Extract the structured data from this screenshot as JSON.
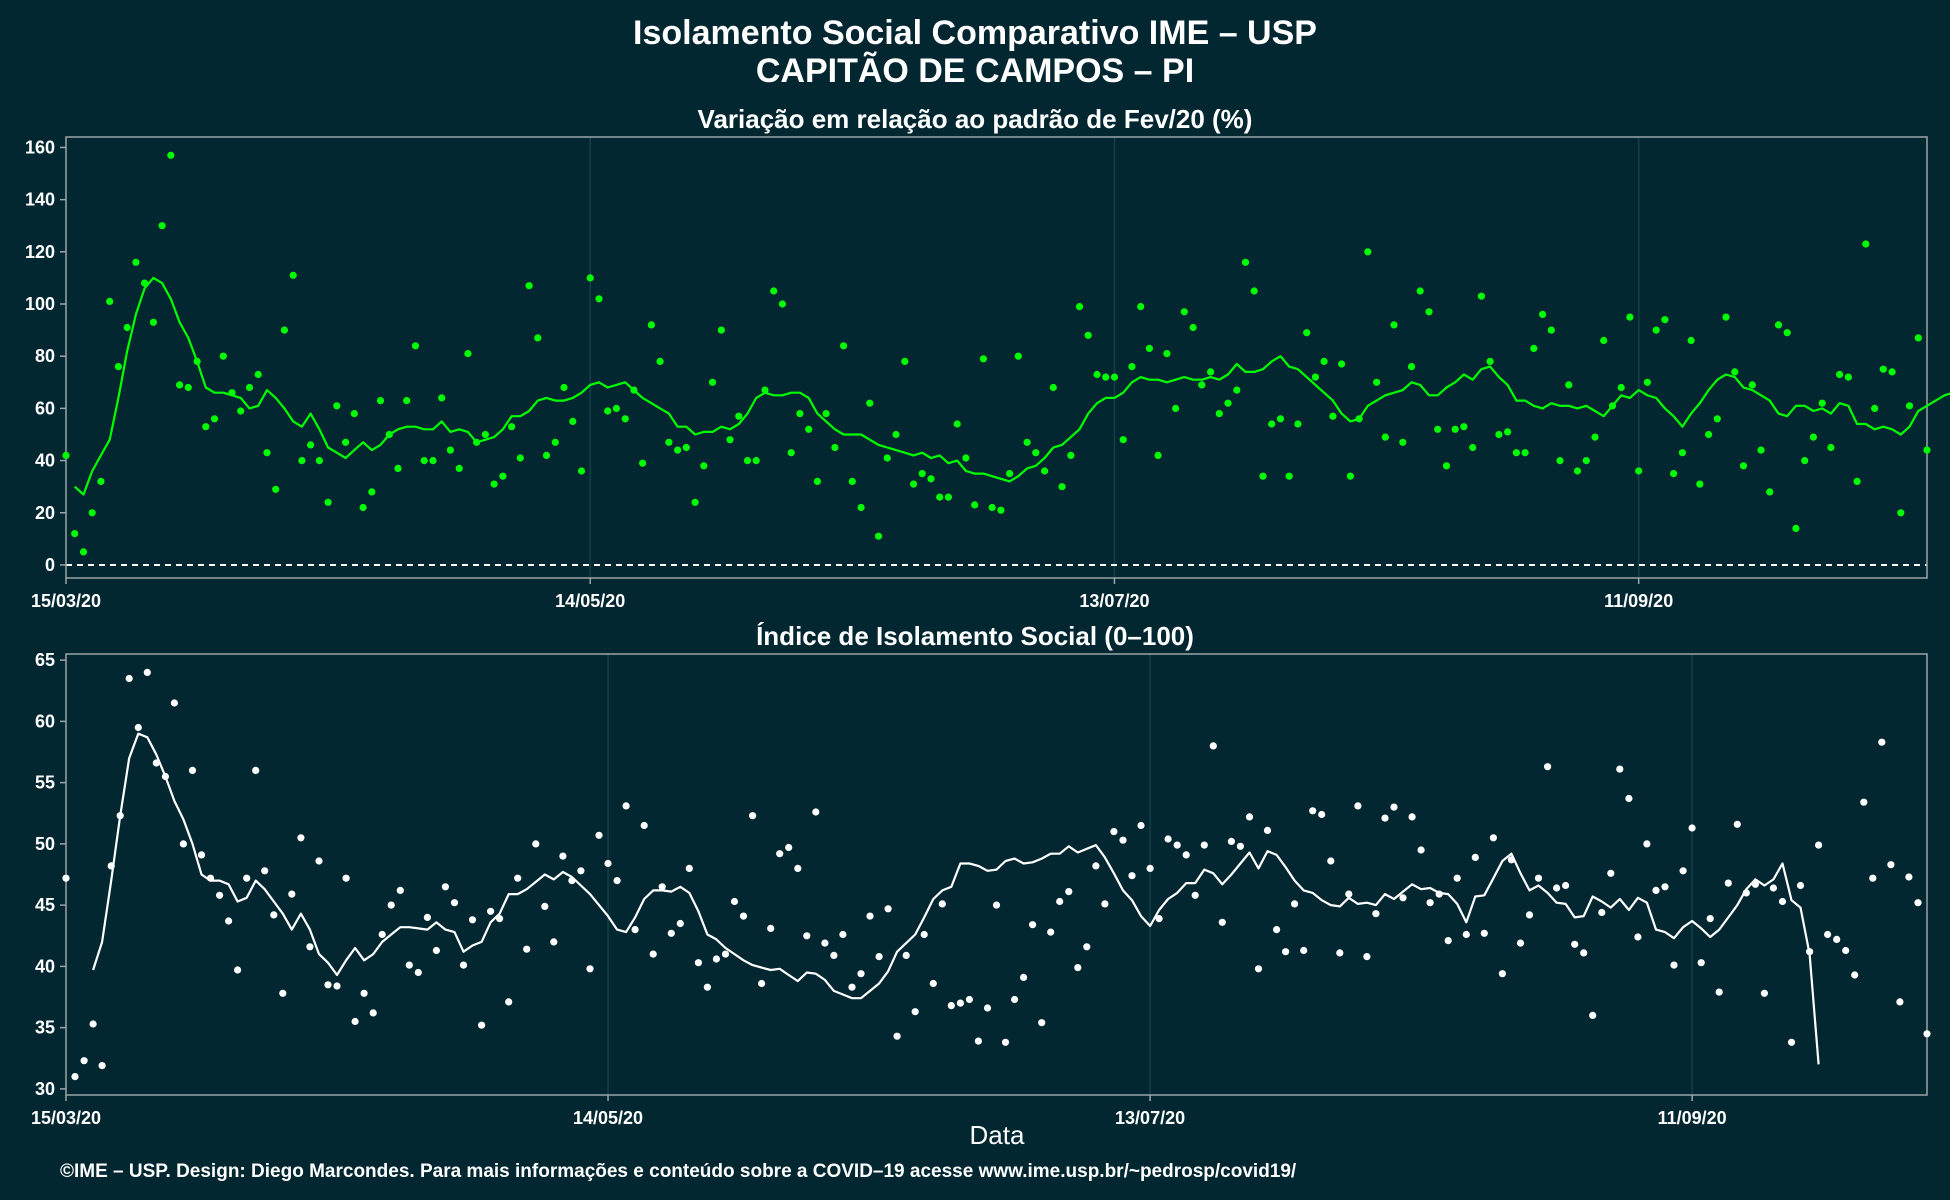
{
  "title": "Isolamento Social Comparativo IME – USP",
  "subtitle": "CAPITÃO DE CAMPOS – PI",
  "footer": "©IME – USP. Design: Diego Marcondes. Para mais informações e conteúdo sobre a COVID–19 acesse www.ime.usp.br/~pedrosp/covid19/",
  "colors": {
    "background": "#022731",
    "top_series": "#00ff00",
    "bottom_series": "#ffffff",
    "frame": "#9aa5a8",
    "grid": "#12404a"
  },
  "chart_data": [
    {
      "type": "scatter",
      "title": "Variação em relação ao padrão de Fev/20 (%)",
      "x_ticks": [
        "15/03/20",
        "14/05/20",
        "13/07/20",
        "11/09/20"
      ],
      "x_range": [
        "15/03/20",
        "13/10/20"
      ],
      "y_ticks": [
        0,
        20,
        40,
        60,
        80,
        100,
        120,
        140,
        160
      ],
      "ylim": [
        -5,
        164
      ],
      "reference_line": 0,
      "grid": true,
      "points": [
        42,
        12,
        5,
        20,
        32,
        101,
        76,
        91,
        116,
        108,
        93,
        130,
        157,
        69,
        68,
        78,
        53,
        56,
        80,
        66,
        59,
        68,
        73,
        43,
        29,
        90,
        111,
        40,
        46,
        40,
        24,
        61,
        47,
        58,
        22,
        28,
        63,
        50,
        37,
        63,
        84,
        40,
        40,
        64,
        44,
        37,
        81,
        47,
        50,
        31,
        34,
        53,
        41,
        107,
        87,
        42,
        47,
        68,
        55,
        36,
        110,
        102,
        59,
        60,
        56,
        67,
        39,
        92,
        78,
        47,
        44,
        45,
        24,
        38,
        70,
        90,
        48,
        57,
        40,
        40,
        67,
        105,
        100,
        43,
        58,
        52,
        32,
        58,
        45,
        84,
        32,
        22,
        62,
        11,
        41,
        50,
        78,
        31,
        35,
        33,
        26,
        26,
        54,
        41,
        23,
        79,
        22,
        21,
        35,
        80,
        47,
        43,
        36,
        68,
        30,
        42,
        99,
        88,
        73,
        72,
        72,
        48,
        76,
        99,
        83,
        42,
        81,
        60,
        97,
        91,
        69,
        74,
        58,
        62,
        67,
        116,
        105,
        34,
        54,
        56,
        34,
        54,
        89,
        72,
        78,
        57,
        77,
        34,
        56,
        120,
        70,
        49,
        92,
        47,
        76,
        105,
        97,
        52,
        38,
        52,
        53,
        45,
        103,
        78,
        50,
        51,
        43,
        43,
        83,
        96,
        90,
        40,
        69,
        36,
        40,
        49,
        86,
        61,
        68,
        95,
        36,
        70,
        90,
        94,
        35,
        43,
        86,
        31,
        50,
        56,
        95,
        74,
        38,
        69,
        44,
        28,
        92,
        89,
        14,
        40,
        49,
        62,
        45,
        73,
        72,
        32,
        123,
        60,
        75,
        74,
        20,
        61,
        87,
        44
      ],
      "rolling_avg": [
        30,
        27,
        36,
        42,
        48,
        64,
        82,
        96,
        106,
        110,
        108,
        102,
        93,
        87,
        78,
        68,
        66,
        66,
        65,
        64,
        60,
        61,
        67,
        64,
        60,
        55,
        53,
        58,
        52,
        45,
        43,
        41,
        44,
        47,
        44,
        46,
        50,
        52,
        53,
        53,
        52,
        52,
        55,
        51,
        52,
        51,
        47,
        48,
        49,
        52,
        57,
        57,
        59,
        63,
        64,
        63,
        63,
        64,
        66,
        69,
        70,
        68,
        69,
        70,
        67,
        64,
        62,
        60,
        58,
        53,
        53,
        50,
        51,
        51,
        53,
        52,
        54,
        58,
        64,
        66,
        65,
        65,
        66,
        66,
        64,
        58,
        55,
        52,
        50,
        50,
        50,
        48,
        46,
        45,
        44,
        43,
        42,
        43,
        41,
        42,
        39,
        40,
        36,
        35,
        35,
        34,
        33,
        32,
        34,
        37,
        38,
        41,
        45,
        46,
        49,
        52,
        58,
        62,
        64,
        64,
        66,
        70,
        72,
        71,
        71,
        70,
        71,
        72,
        71,
        71,
        72,
        71,
        73,
        77,
        74,
        74,
        75,
        78,
        80,
        76,
        75,
        72,
        69,
        66,
        63,
        58,
        55,
        56,
        61,
        63,
        65,
        66,
        67,
        70,
        69,
        65,
        65,
        68,
        70,
        73,
        71,
        75,
        76,
        72,
        69,
        63,
        63,
        61,
        60,
        62,
        61,
        61,
        60,
        61,
        59,
        57,
        61,
        65,
        64,
        67,
        65,
        64,
        60,
        57,
        53,
        58,
        62,
        67,
        71,
        73,
        72,
        68,
        67,
        65,
        63,
        58,
        57,
        61,
        61,
        59,
        60,
        58,
        62,
        61,
        54,
        54,
        52,
        53,
        52,
        50,
        53,
        59,
        61,
        63,
        65,
        66,
        70,
        72,
        66,
        62,
        71,
        60
      ],
      "rolling_start": 1
    },
    {
      "type": "scatter",
      "title": "Índice de Isolamento Social (0–100)",
      "xlabel": "Data",
      "x_ticks": [
        "15/03/20",
        "14/05/20",
        "13/07/20",
        "11/09/20"
      ],
      "x_range": [
        "15/03/20",
        "13/10/20"
      ],
      "y_ticks": [
        30,
        35,
        40,
        45,
        50,
        55,
        60,
        65
      ],
      "ylim": [
        29.5,
        65.5
      ],
      "grid": true,
      "points": [
        47.2,
        31,
        32.3,
        35.3,
        31.9,
        48.2,
        52.3,
        63.5,
        59.5,
        64,
        56.6,
        55.5,
        61.5,
        50,
        56,
        49.1,
        47.2,
        45.8,
        43.7,
        39.7,
        47.2,
        56,
        47.8,
        44.2,
        37.8,
        45.9,
        50.5,
        41.6,
        48.6,
        38.5,
        38.4,
        47.2,
        35.5,
        37.8,
        36.2,
        42.6,
        45,
        46.2,
        40.1,
        39.5,
        44,
        41.3,
        46.5,
        45.2,
        40.1,
        43.8,
        35.2,
        44.5,
        43.9,
        37.1,
        47.2,
        41.4,
        50,
        44.9,
        42,
        49,
        47,
        47.8,
        39.8,
        50.7,
        48.4,
        47,
        53.1,
        43,
        51.5,
        41,
        46.5,
        42.7,
        43.5,
        48,
        40.3,
        38.3,
        40.6,
        41,
        45.3,
        44.1,
        52.3,
        38.6,
        43.1,
        49.2,
        49.7,
        48,
        42.5,
        52.6,
        41.9,
        40.9,
        42.6,
        38.3,
        39.4,
        44.1,
        40.8,
        44.7,
        34.3,
        40.9,
        36.3,
        42.6,
        38.6,
        45.1,
        36.8,
        37,
        37.3,
        33.9,
        36.6,
        45,
        33.8,
        37.3,
        39.1,
        43.4,
        35.4,
        42.8,
        45.3,
        46.1,
        39.9,
        41.6,
        48.2,
        45.1,
        51,
        50.3,
        47.4,
        51.5,
        48,
        43.9,
        50.4,
        49.9,
        49.1,
        45.8,
        49.9,
        58,
        43.6,
        50.2,
        49.8,
        52.2,
        39.8,
        51.1,
        43,
        41.2,
        45.1,
        41.3,
        52.7,
        52.4,
        48.6,
        41.1,
        45.9,
        53.1,
        40.8,
        44.3,
        52.1,
        53,
        45.6,
        52.2,
        49.5,
        45.2,
        45.9,
        42.1,
        47.2,
        42.6,
        48.9,
        42.7,
        50.5,
        39.4,
        48.7,
        41.9,
        44.2,
        47.2,
        56.3,
        46.4,
        46.6,
        41.8,
        41.1,
        36,
        44.4,
        47.6,
        56.1,
        53.7,
        42.4,
        50,
        46.2,
        46.5,
        40.1,
        47.8,
        51.3,
        40.3,
        43.9,
        37.9,
        46.8,
        51.6,
        46,
        46.7,
        37.8,
        46.4,
        45.3,
        33.8,
        46.6,
        41.2,
        49.9,
        42.6,
        42.2,
        41.3,
        39.3,
        53.4,
        47.2,
        58.3,
        48.3,
        37.1,
        47.3,
        45.2,
        34.5
      ],
      "rolling_avg": [
        39.7,
        42,
        47,
        52.3,
        57,
        59,
        58.7,
        57.3,
        55.5,
        53.5,
        52,
        50,
        47.5,
        47,
        47,
        46.7,
        45.3,
        45.6,
        47,
        46.3,
        45.3,
        44.3,
        43,
        44.3,
        43,
        41,
        40.3,
        39.3,
        40.5,
        41.5,
        40.5,
        41,
        42,
        42.6,
        43.2,
        43.2,
        43.1,
        43,
        43.6,
        43,
        42.8,
        41.2,
        41.7,
        42,
        43.6,
        44.3,
        45.9,
        45.9,
        46.3,
        46.9,
        47.5,
        47.1,
        47.7,
        47.3,
        46.6,
        45.9,
        45,
        44.1,
        43,
        42.8,
        44,
        45.5,
        46.2,
        46.2,
        46.1,
        46.5,
        46,
        44.5,
        42.6,
        42.2,
        41.5,
        41,
        40.5,
        40.1,
        39.9,
        39.7,
        39.8,
        39.3,
        38.8,
        39.5,
        39.4,
        38.9,
        38,
        37.7,
        37.4,
        37.4,
        38,
        38.6,
        39.6,
        41.2,
        41.9,
        42.6,
        44,
        45.5,
        46.2,
        46.5,
        48.4,
        48.4,
        48.2,
        47.8,
        47.9,
        48.6,
        48.8,
        48.4,
        48.5,
        48.8,
        49.2,
        49.2,
        49.8,
        49.3,
        49.6,
        49.9,
        48.9,
        47.6,
        46.2,
        45.4,
        44.1,
        43.3,
        44.6,
        45.5,
        46,
        46.8,
        46.8,
        47.9,
        47.6,
        46.7,
        47.5,
        48.4,
        49.3,
        48,
        49.4,
        49.1,
        48.1,
        47,
        46.2,
        46,
        45.4,
        45,
        44.9,
        45.6,
        45.1,
        45.2,
        45,
        45.9,
        45.5,
        46.1,
        46.7,
        46.3,
        46.4,
        46,
        45.9,
        45.1,
        43.6,
        45.7,
        45.8,
        47.2,
        48.6,
        49.2,
        47.6,
        46.2,
        46.6,
        46,
        45.2,
        45.1,
        44,
        44.1,
        45.7,
        45.3,
        44.8,
        45.5,
        44.6,
        45.6,
        45.2,
        43,
        42.8,
        42.3,
        43.2,
        43.7,
        43.1,
        42.4,
        43,
        44,
        45,
        46.3,
        47.1,
        46.6,
        47.1,
        48.4,
        45.4,
        44.8,
        41,
        32
      ],
      "rolling_start": 3
    }
  ]
}
